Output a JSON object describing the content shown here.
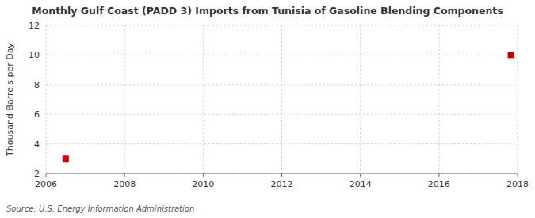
{
  "chart_data": {
    "type": "scatter",
    "title": "Monthly Gulf Coast (PADD 3) Imports from Tunisia of Gasoline Blending Components",
    "y_label": "Thousand Barrels per Day",
    "source": "Source: U.S. Energy Information Administration",
    "x": [
      2006.5,
      2017.83
    ],
    "values": [
      3.0,
      10.0
    ],
    "color": "#cc0000",
    "marker": "square",
    "xlim": [
      2006,
      2018
    ],
    "ylim": [
      2,
      12
    ],
    "xticks": [
      2006,
      2008,
      2010,
      2012,
      2014,
      2016,
      2018
    ],
    "yticks": [
      2,
      4,
      6,
      8,
      10,
      12
    ],
    "grid": true
  }
}
